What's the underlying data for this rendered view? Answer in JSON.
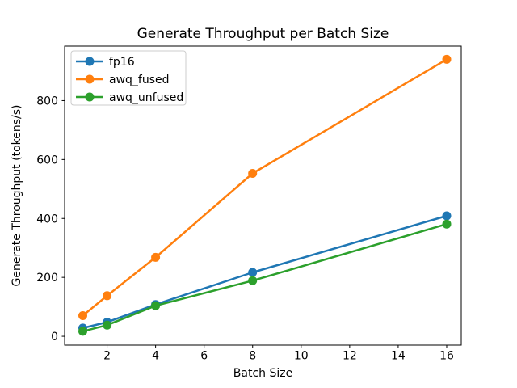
{
  "chart_data": {
    "type": "line",
    "title": "Generate Throughput per Batch Size",
    "xlabel": "Batch Size",
    "ylabel": "Generate Throughput (tokens/s)",
    "x": [
      1,
      2,
      4,
      8,
      16
    ],
    "series": [
      {
        "name": "fp16",
        "color": "#1f77b4",
        "values": [
          28,
          48,
          108,
          217,
          409
        ]
      },
      {
        "name": "awq_fused",
        "color": "#ff7f0e",
        "values": [
          70,
          138,
          268,
          553,
          940
        ]
      },
      {
        "name": "awq_unfused",
        "color": "#2ca02c",
        "values": [
          17,
          38,
          104,
          189,
          381
        ]
      }
    ],
    "xticks": [
      2,
      4,
      6,
      8,
      10,
      12,
      14,
      16
    ],
    "yticks": [
      0,
      200,
      400,
      600,
      800
    ],
    "xlim": [
      0.25,
      16.6
    ],
    "ylim": [
      -30,
      985
    ],
    "grid": false,
    "marker": "o",
    "legend_position": "upper left",
    "colors": {
      "spine": "#000000",
      "background": "#ffffff",
      "legend_border": "#cccccc"
    }
  }
}
